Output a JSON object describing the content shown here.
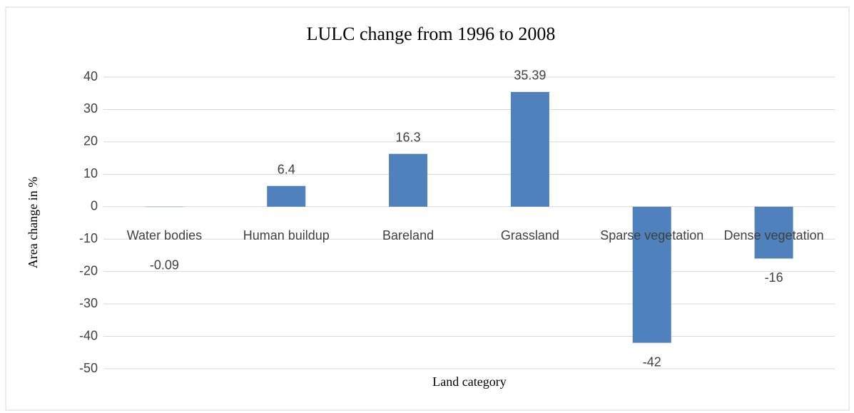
{
  "chart_data": {
    "type": "bar",
    "title": "LULC change from 1996 to 2008",
    "x_label": "Land category",
    "y_label": "Area change in %",
    "categories": [
      "Water bodies",
      "Human buildup",
      "Bareland",
      "Grassland",
      "Sparse vegetation",
      "Dense vegetation"
    ],
    "values": [
      -0.09,
      6.4,
      16.3,
      35.39,
      -42,
      -16
    ],
    "color": "#4f81bd",
    "ylim": [
      -50,
      40
    ],
    "yticks": [
      -50,
      -40,
      -30,
      -20,
      -10,
      0,
      10,
      20,
      30,
      40
    ],
    "grid": true
  }
}
